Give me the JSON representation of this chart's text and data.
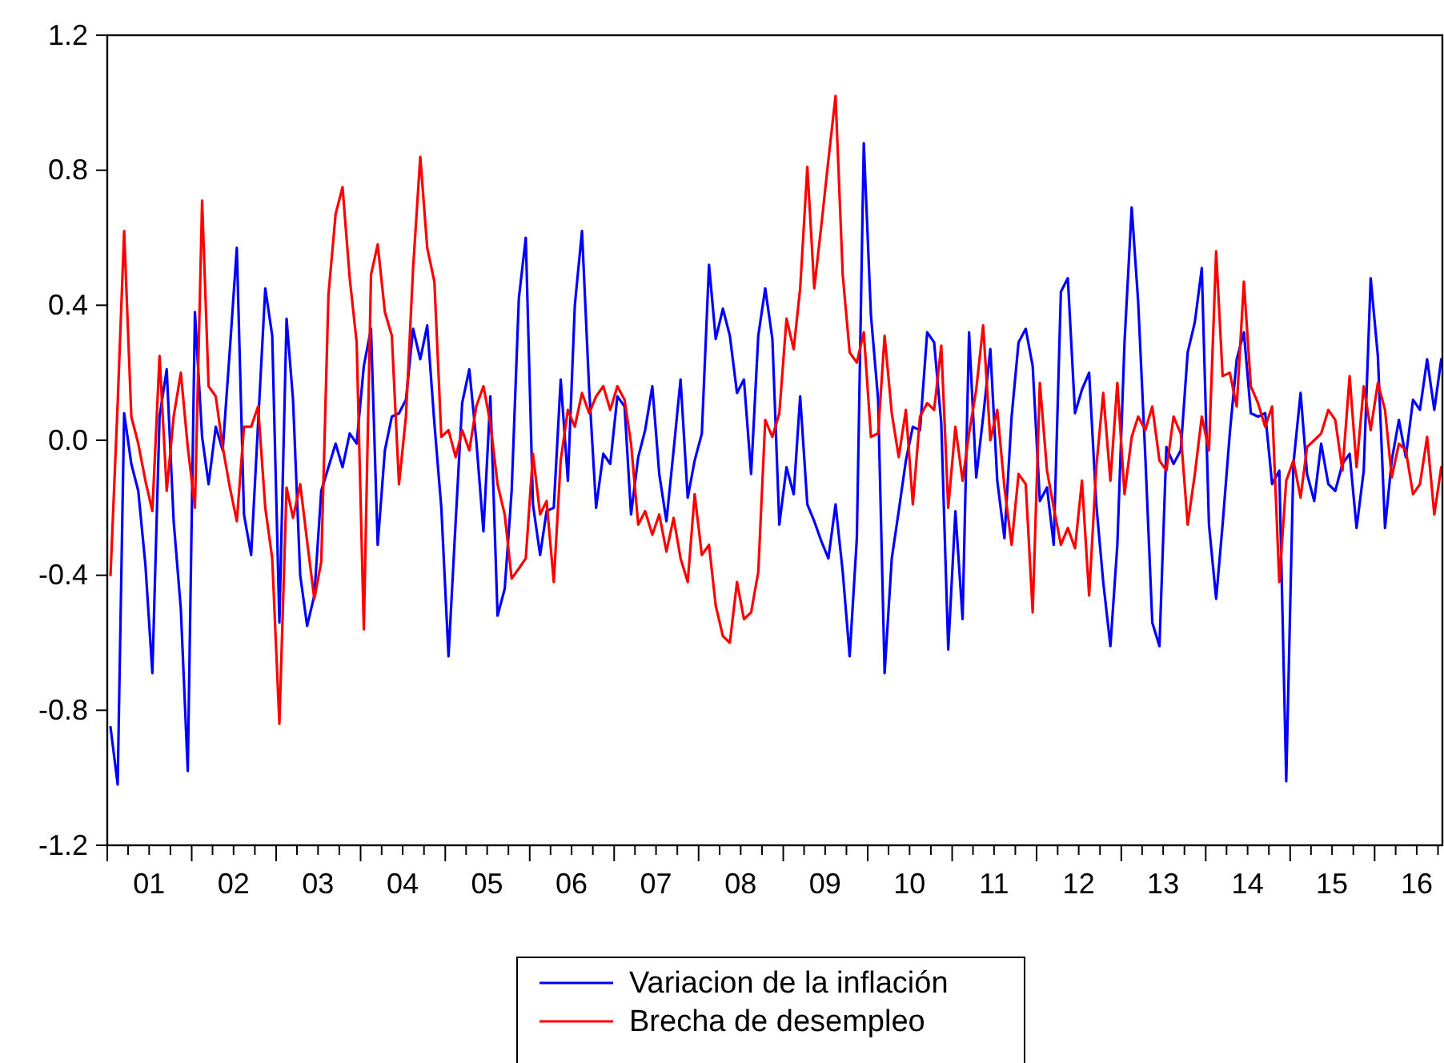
{
  "chart_data": {
    "type": "line",
    "x": [
      "2001-01-15",
      "2001-02-15",
      "2001-03-15",
      "2001-04-15",
      "2001-05-15",
      "2001-06-15",
      "2001-07-15",
      "2001-08-15",
      "2001-09-15",
      "2001-10-15",
      "2001-11-15",
      "2001-12-15",
      "2002-01-15",
      "2002-02-15",
      "2002-03-15",
      "2002-04-15",
      "2002-05-15",
      "2002-06-15",
      "2002-07-15",
      "2002-08-15",
      "2002-09-15",
      "2002-10-15",
      "2002-11-15",
      "2002-12-15",
      "2003-01-15",
      "2003-02-15",
      "2003-03-15",
      "2003-04-15",
      "2003-05-15",
      "2003-06-15",
      "2003-07-15",
      "2003-08-15",
      "2003-09-15",
      "2003-10-15",
      "2003-11-15",
      "2003-12-15",
      "2004-01-15",
      "2004-02-15",
      "2004-03-15",
      "2004-04-15",
      "2004-05-15",
      "2004-06-15",
      "2004-07-15",
      "2004-08-15",
      "2004-09-15",
      "2004-10-15",
      "2004-11-15",
      "2004-12-15",
      "2005-01-15",
      "2005-02-15",
      "2005-03-15",
      "2005-04-15",
      "2005-05-15",
      "2005-06-15",
      "2005-07-15",
      "2005-08-15",
      "2005-09-15",
      "2005-10-15",
      "2005-11-15",
      "2005-12-15",
      "2006-01-15",
      "2006-02-15",
      "2006-03-15",
      "2006-04-15",
      "2006-05-15",
      "2006-06-15",
      "2006-07-15",
      "2006-08-15",
      "2006-09-15",
      "2006-10-15",
      "2006-11-15",
      "2006-12-15",
      "2007-01-15",
      "2007-02-15",
      "2007-03-15",
      "2007-04-15",
      "2007-05-15",
      "2007-06-15",
      "2007-07-15",
      "2007-08-15",
      "2007-09-15",
      "2007-10-15",
      "2007-11-15",
      "2007-12-15",
      "2008-01-15",
      "2008-02-15",
      "2008-03-15",
      "2008-04-15",
      "2008-05-15",
      "2008-06-15",
      "2008-07-15",
      "2008-08-15",
      "2008-09-15",
      "2008-10-15",
      "2008-11-15",
      "2008-12-15",
      "2009-01-15",
      "2009-02-15",
      "2009-03-15",
      "2009-04-15",
      "2009-05-15",
      "2009-06-15",
      "2009-07-15",
      "2009-08-15",
      "2009-09-15",
      "2009-10-15",
      "2009-11-15",
      "2009-12-15",
      "2010-01-15",
      "2010-02-15",
      "2010-03-15",
      "2010-04-15",
      "2010-05-15",
      "2010-06-15",
      "2010-07-15",
      "2010-08-15",
      "2010-09-15",
      "2010-10-15",
      "2010-11-15",
      "2010-12-15",
      "2011-01-15",
      "2011-02-15",
      "2011-03-15",
      "2011-04-15",
      "2011-05-15",
      "2011-06-15",
      "2011-07-15",
      "2011-08-15",
      "2011-09-15",
      "2011-10-15",
      "2011-11-15",
      "2011-12-15",
      "2012-01-15",
      "2012-02-15",
      "2012-03-15",
      "2012-04-15",
      "2012-05-15",
      "2012-06-15",
      "2012-07-15",
      "2012-08-15",
      "2012-09-15",
      "2012-10-15",
      "2012-11-15",
      "2012-12-15",
      "2013-01-15",
      "2013-02-15",
      "2013-03-15",
      "2013-04-15",
      "2013-05-15",
      "2013-06-15",
      "2013-07-15",
      "2013-08-15",
      "2013-09-15",
      "2013-10-15",
      "2013-11-15",
      "2013-12-15",
      "2014-01-15",
      "2014-02-15",
      "2014-03-15",
      "2014-04-15",
      "2014-05-15",
      "2014-06-15",
      "2014-07-15",
      "2014-08-15",
      "2014-09-15",
      "2014-10-15",
      "2014-11-15",
      "2014-12-15",
      "2015-01-15",
      "2015-02-15",
      "2015-03-15",
      "2015-04-15",
      "2015-05-15",
      "2015-06-15",
      "2015-07-15",
      "2015-08-15",
      "2015-09-15",
      "2015-10-15",
      "2015-11-15",
      "2015-12-15",
      "2016-01-15",
      "2016-02-15",
      "2016-03-15",
      "2016-04-15",
      "2016-05-15",
      "2016-06-15",
      "2016-07-15",
      "2016-08-15",
      "2016-09-15",
      "2016-10-15"
    ],
    "series": [
      {
        "name": "Variacion de la inflación",
        "color": "#0000ff",
        "values": [
          -0.85,
          -1.02,
          0.08,
          -0.07,
          -0.15,
          -0.37,
          -0.69,
          0.07,
          0.21,
          -0.24,
          -0.5,
          -0.98,
          0.38,
          0.01,
          -0.13,
          0.04,
          -0.03,
          0.27,
          0.57,
          -0.22,
          -0.34,
          0.05,
          0.45,
          0.31,
          -0.54,
          0.36,
          0.12,
          -0.4,
          -0.55,
          -0.46,
          -0.15,
          -0.08,
          -0.01,
          -0.08,
          0.02,
          -0.01,
          0.22,
          0.33,
          -0.31,
          -0.03,
          0.07,
          0.08,
          0.12,
          0.33,
          0.24,
          0.34,
          0.05,
          -0.2,
          -0.64,
          -0.24,
          0.11,
          0.21,
          0.0,
          -0.27,
          0.13,
          -0.52,
          -0.44,
          -0.15,
          0.42,
          0.6,
          -0.19,
          -0.34,
          -0.21,
          -0.2,
          0.18,
          -0.12,
          0.4,
          0.62,
          0.15,
          -0.2,
          -0.04,
          -0.07,
          0.13,
          0.1,
          -0.22,
          -0.05,
          0.03,
          0.16,
          -0.1,
          -0.24,
          -0.03,
          0.18,
          -0.17,
          -0.06,
          0.02,
          0.52,
          0.3,
          0.39,
          0.31,
          0.14,
          0.18,
          -0.1,
          0.31,
          0.45,
          0.3,
          -0.25,
          -0.08,
          -0.16,
          0.13,
          -0.19,
          -0.24,
          -0.3,
          -0.35,
          -0.19,
          -0.39,
          -0.64,
          -0.29,
          0.88,
          0.37,
          0.12,
          -0.69,
          -0.35,
          -0.21,
          -0.06,
          0.04,
          0.03,
          0.32,
          0.29,
          0.05,
          -0.62,
          -0.21,
          -0.53,
          0.32,
          -0.11,
          0.07,
          0.27,
          -0.12,
          -0.29,
          0.07,
          0.29,
          0.33,
          0.22,
          -0.18,
          -0.14,
          -0.31,
          0.44,
          0.48,
          0.08,
          0.15,
          0.2,
          -0.19,
          -0.42,
          -0.61,
          -0.31,
          0.29,
          0.69,
          0.41,
          -0.05,
          -0.54,
          -0.61,
          -0.02,
          -0.07,
          -0.03,
          0.26,
          0.35,
          0.51,
          -0.25,
          -0.47,
          -0.25,
          0.02,
          0.24,
          0.32,
          0.08,
          0.07,
          0.08,
          -0.13,
          -0.09,
          -1.01,
          -0.07,
          0.14,
          -0.1,
          -0.18,
          -0.01,
          -0.13,
          -0.15,
          -0.07,
          -0.04,
          -0.26,
          -0.09,
          0.48,
          0.25,
          -0.26,
          -0.06,
          0.06,
          -0.05,
          0.12,
          0.09,
          0.24,
          0.09,
          0.24
        ]
      },
      {
        "name": "Brecha de desempleo",
        "color": "#ff0000",
        "values": [
          -0.4,
          0.11,
          0.62,
          0.07,
          -0.01,
          -0.12,
          -0.21,
          0.25,
          -0.15,
          0.07,
          0.2,
          -0.02,
          -0.2,
          0.71,
          0.16,
          0.13,
          -0.02,
          -0.14,
          -0.24,
          0.04,
          0.04,
          0.1,
          -0.2,
          -0.35,
          -0.84,
          -0.14,
          -0.23,
          -0.13,
          -0.3,
          -0.47,
          -0.36,
          0.43,
          0.67,
          0.75,
          0.48,
          0.29,
          -0.56,
          0.49,
          0.58,
          0.38,
          0.31,
          -0.13,
          0.07,
          0.51,
          0.84,
          0.57,
          0.47,
          0.01,
          0.03,
          -0.05,
          0.03,
          -0.03,
          0.1,
          0.16,
          0.05,
          -0.13,
          -0.22,
          -0.41,
          -0.38,
          -0.35,
          -0.04,
          -0.22,
          -0.18,
          -0.42,
          -0.06,
          0.09,
          0.04,
          0.14,
          0.08,
          0.13,
          0.16,
          0.09,
          0.16,
          0.12,
          -0.01,
          -0.25,
          -0.21,
          -0.28,
          -0.22,
          -0.33,
          -0.23,
          -0.35,
          -0.42,
          -0.16,
          -0.34,
          -0.31,
          -0.49,
          -0.58,
          -0.6,
          -0.42,
          -0.53,
          -0.51,
          -0.39,
          0.06,
          0.01,
          0.08,
          0.36,
          0.27,
          0.45,
          0.81,
          0.45,
          0.64,
          0.83,
          1.02,
          0.49,
          0.26,
          0.23,
          0.32,
          0.01,
          0.02,
          0.31,
          0.08,
          -0.05,
          0.09,
          -0.19,
          0.07,
          0.11,
          0.09,
          0.28,
          -0.2,
          0.04,
          -0.12,
          0.02,
          0.15,
          0.34,
          0.0,
          0.09,
          -0.14,
          -0.31,
          -0.1,
          -0.13,
          -0.51,
          0.17,
          -0.09,
          -0.2,
          -0.31,
          -0.26,
          -0.32,
          -0.12,
          -0.46,
          -0.08,
          0.14,
          -0.12,
          0.17,
          -0.16,
          0.01,
          0.07,
          0.03,
          0.1,
          -0.06,
          -0.09,
          0.07,
          0.02,
          -0.25,
          -0.1,
          0.07,
          -0.03,
          0.56,
          0.19,
          0.2,
          0.1,
          0.47,
          0.16,
          0.11,
          0.04,
          0.1,
          -0.42,
          -0.12,
          -0.06,
          -0.17,
          -0.02,
          0.0,
          0.02,
          0.09,
          0.06,
          -0.09,
          0.19,
          -0.08,
          0.16,
          0.03,
          0.17,
          0.09,
          -0.11,
          -0.01,
          -0.03,
          -0.16,
          -0.13,
          0.01,
          -0.22,
          -0.08
        ]
      }
    ],
    "xlim": [
      "2001-01-01",
      "2016-10-20"
    ],
    "xticks": [
      {
        "value": "2001-01-01",
        "label": null
      },
      {
        "value": "2001-04-01",
        "label": null
      },
      {
        "value": "2001-07-01",
        "label": "01"
      },
      {
        "value": "2001-10-01",
        "label": null
      },
      {
        "value": "2002-01-01",
        "label": null
      },
      {
        "value": "2002-04-01",
        "label": null
      },
      {
        "value": "2002-07-01",
        "label": "02"
      },
      {
        "value": "2002-10-01",
        "label": null
      },
      {
        "value": "2003-01-01",
        "label": null
      },
      {
        "value": "2003-04-01",
        "label": null
      },
      {
        "value": "2003-07-01",
        "label": "03"
      },
      {
        "value": "2003-10-01",
        "label": null
      },
      {
        "value": "2004-01-01",
        "label": null
      },
      {
        "value": "2004-04-01",
        "label": null
      },
      {
        "value": "2004-07-01",
        "label": "04"
      },
      {
        "value": "2004-10-01",
        "label": null
      },
      {
        "value": "2005-01-01",
        "label": null
      },
      {
        "value": "2005-04-01",
        "label": null
      },
      {
        "value": "2005-07-01",
        "label": "05"
      },
      {
        "value": "2005-10-01",
        "label": null
      },
      {
        "value": "2006-01-01",
        "label": null
      },
      {
        "value": "2006-04-01",
        "label": null
      },
      {
        "value": "2006-07-01",
        "label": "06"
      },
      {
        "value": "2006-10-01",
        "label": null
      },
      {
        "value": "2007-01-01",
        "label": null
      },
      {
        "value": "2007-04-01",
        "label": null
      },
      {
        "value": "2007-07-01",
        "label": "07"
      },
      {
        "value": "2007-10-01",
        "label": null
      },
      {
        "value": "2008-01-01",
        "label": null
      },
      {
        "value": "2008-04-01",
        "label": null
      },
      {
        "value": "2008-07-01",
        "label": "08"
      },
      {
        "value": "2008-10-01",
        "label": null
      },
      {
        "value": "2009-01-01",
        "label": null
      },
      {
        "value": "2009-04-01",
        "label": null
      },
      {
        "value": "2009-07-01",
        "label": "09"
      },
      {
        "value": "2009-10-01",
        "label": null
      },
      {
        "value": "2010-01-01",
        "label": null
      },
      {
        "value": "2010-04-01",
        "label": null
      },
      {
        "value": "2010-07-01",
        "label": "10"
      },
      {
        "value": "2010-10-01",
        "label": null
      },
      {
        "value": "2011-01-01",
        "label": null
      },
      {
        "value": "2011-04-01",
        "label": null
      },
      {
        "value": "2011-07-01",
        "label": "11"
      },
      {
        "value": "2011-10-01",
        "label": null
      },
      {
        "value": "2012-01-01",
        "label": null
      },
      {
        "value": "2012-04-01",
        "label": null
      },
      {
        "value": "2012-07-01",
        "label": "12"
      },
      {
        "value": "2012-10-01",
        "label": null
      },
      {
        "value": "2013-01-01",
        "label": null
      },
      {
        "value": "2013-04-01",
        "label": null
      },
      {
        "value": "2013-07-01",
        "label": "13"
      },
      {
        "value": "2013-10-01",
        "label": null
      },
      {
        "value": "2014-01-01",
        "label": null
      },
      {
        "value": "2014-04-01",
        "label": null
      },
      {
        "value": "2014-07-01",
        "label": "14"
      },
      {
        "value": "2014-10-01",
        "label": null
      },
      {
        "value": "2015-01-01",
        "label": null
      },
      {
        "value": "2015-04-01",
        "label": null
      },
      {
        "value": "2015-07-01",
        "label": "15"
      },
      {
        "value": "2015-10-01",
        "label": null
      },
      {
        "value": "2016-01-01",
        "label": null
      },
      {
        "value": "2016-04-01",
        "label": null
      },
      {
        "value": "2016-07-01",
        "label": "16"
      },
      {
        "value": "2016-10-01",
        "label": null
      }
    ],
    "ylim": [
      -1.2,
      1.2
    ],
    "yticks": [
      -1.2,
      -0.8,
      -0.4,
      {
        "value": 0,
        "label": "0.0"
      },
      0.4,
      0.8,
      1.2
    ],
    "grid": false,
    "legend": "bottom",
    "marker": "none",
    "line_style": "solid"
  }
}
